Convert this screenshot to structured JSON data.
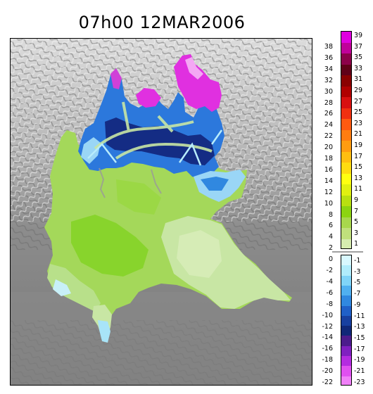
{
  "title": "07h00  12MAR2006",
  "legend": {
    "left_ticks": [
      "38",
      "36",
      "34",
      "32",
      "30",
      "28",
      "26",
      "24",
      "22",
      "20",
      "18",
      "16",
      "14",
      "12",
      "10",
      "8",
      "6",
      "4",
      "2",
      "0",
      "-2",
      "-4",
      "-6",
      "-8",
      "-10",
      "-12",
      "-14",
      "-16",
      "-18",
      "-20",
      "-22"
    ],
    "positive_ticks": [
      "39",
      "37",
      "35",
      "33",
      "31",
      "29",
      "27",
      "25",
      "23",
      "21",
      "19",
      "17",
      "15",
      "13",
      "11",
      "9",
      "7",
      "5",
      "3",
      "1"
    ],
    "negative_ticks": [
      "-1",
      "-3",
      "-5",
      "-7",
      "-9",
      "-11",
      "-13",
      "-15",
      "-17",
      "-19",
      "-21",
      "-23"
    ],
    "positive_colors": [
      "#e000e0",
      "#c0009a",
      "#8c004a",
      "#600018",
      "#8a0000",
      "#b00000",
      "#d81010",
      "#f03010",
      "#ff5a10",
      "#ff7d10",
      "#ff9c10",
      "#ffbe10",
      "#ffdc10",
      "#ffff10",
      "#e0f010",
      "#b8e010",
      "#8cd410",
      "#a8d84c",
      "#c0e07c",
      "#d6ecb0"
    ],
    "negative_colors": [
      "#d8f8ff",
      "#b0ecfc",
      "#80d4f8",
      "#50b0f0",
      "#3088e0",
      "#2060c8",
      "#1840a0",
      "#102878",
      "#4c1c8c",
      "#8020c0",
      "#b42ce0",
      "#e050f0",
      "#f080f8"
    ]
  },
  "map": {
    "colors": {
      "terrain_light": "#e2e2e2",
      "terrain_mid": "#a8a8a8",
      "terrain_dark": "#707070",
      "plain_gray": "#7c7c7c",
      "green_main": "#a4d85a",
      "green_bright": "#88d42c",
      "green_pale": "#c8e6a4",
      "green_light": "#b8e08a",
      "ice_light": "#b8ecfc",
      "blue_mid": "#2c78dc",
      "blue_dark": "#142c84",
      "magenta": "#e030e0",
      "magenta_light": "#f4a8f4"
    }
  }
}
